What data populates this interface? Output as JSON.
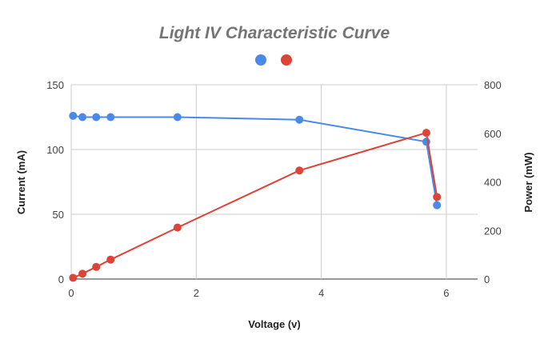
{
  "chart_data": {
    "type": "line",
    "title": "Light IV Characteristic Curve",
    "xlabel": "Voltage (v)",
    "ylabel_left": "Current (mA)",
    "ylabel_right": "Power (mW)",
    "xlim": [
      0,
      6.5
    ],
    "ylim_left": [
      0,
      150
    ],
    "ylim_right": [
      0,
      800
    ],
    "x_ticks": [
      "0",
      "2",
      "4",
      "6"
    ],
    "y_left_ticks": [
      "0",
      "50",
      "100",
      "150"
    ],
    "y_right_ticks": [
      "0",
      "200",
      "400",
      "600",
      "800"
    ],
    "legend_position": "top",
    "grid": true,
    "series": [
      {
        "axis": "left",
        "color": "#4a89e8",
        "points": [
          {
            "x": 0.03,
            "y": 126
          },
          {
            "x": 0.18,
            "y": 125
          },
          {
            "x": 0.4,
            "y": 125
          },
          {
            "x": 0.63,
            "y": 125
          },
          {
            "x": 1.7,
            "y": 125
          },
          {
            "x": 3.65,
            "y": 123
          },
          {
            "x": 5.68,
            "y": 106
          },
          {
            "x": 5.85,
            "y": 57
          }
        ]
      },
      {
        "axis": "right",
        "color": "#db4437",
        "points": [
          {
            "x": 0.03,
            "y": 5
          },
          {
            "x": 0.18,
            "y": 22
          },
          {
            "x": 0.4,
            "y": 50
          },
          {
            "x": 0.63,
            "y": 80
          },
          {
            "x": 1.7,
            "y": 212
          },
          {
            "x": 3.65,
            "y": 447
          },
          {
            "x": 5.68,
            "y": 602
          },
          {
            "x": 5.85,
            "y": 338
          }
        ]
      }
    ]
  }
}
